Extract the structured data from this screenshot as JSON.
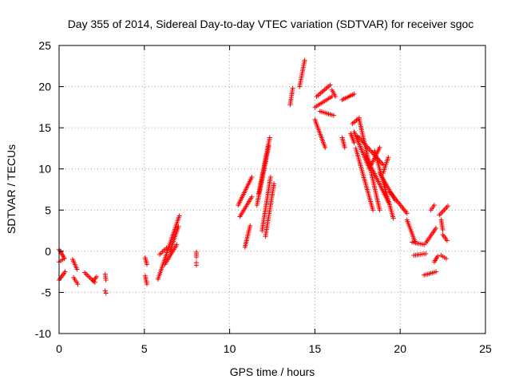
{
  "chart_data": {
    "type": "scatter",
    "title": "Day 355 of 2014, Sidereal Day-to-day VTEC variation (SDTVAR) for receiver sgoc",
    "xlabel": "GPS time / hours",
    "ylabel": "SDTVAR / TECUs",
    "xlim": [
      0,
      25
    ],
    "ylim": [
      -10,
      25
    ],
    "x_ticks": [
      0,
      5,
      10,
      15,
      20,
      25
    ],
    "y_ticks": [
      -10,
      -5,
      0,
      5,
      10,
      15,
      20,
      25
    ],
    "x_tick_labels": [
      "0",
      "5",
      "10",
      "15",
      "20",
      "25"
    ],
    "y_tick_labels": [
      "-10",
      "-5",
      "0",
      "5",
      "10",
      "15",
      "20",
      "25"
    ],
    "grid": true,
    "marker": "+",
    "color": "#ff0000",
    "series": [
      {
        "name": "SDTVAR",
        "segments": [
          {
            "x": [
              0.0,
              0.3
            ],
            "y": [
              0.2,
              -0.8
            ]
          },
          {
            "x": [
              0.0,
              0.35
            ],
            "y": [
              -3.5,
              -2.5
            ]
          },
          {
            "x": [
              0.0,
              0.3
            ],
            "y": [
              -1.3,
              -0.9
            ]
          },
          {
            "x": [
              0.8,
              1.05
            ],
            "y": [
              -1.0,
              -2.2
            ]
          },
          {
            "x": [
              0.85,
              1.1
            ],
            "y": [
              -3.2,
              -4.0
            ]
          },
          {
            "x": [
              1.5,
              2.1
            ],
            "y": [
              -2.6,
              -3.8
            ]
          },
          {
            "x": [
              2.0,
              2.2
            ],
            "y": [
              -3.6,
              -3.1
            ]
          },
          {
            "x": [
              2.7,
              2.75
            ],
            "y": [
              -2.8,
              -3.5
            ]
          },
          {
            "x": [
              2.7,
              2.75
            ],
            "y": [
              -4.8,
              -5.1
            ]
          },
          {
            "x": [
              5.05,
              5.15
            ],
            "y": [
              -0.8,
              -1.6
            ]
          },
          {
            "x": [
              5.05,
              5.15
            ],
            "y": [
              -3.0,
              -4.0
            ]
          },
          {
            "x": [
              5.8,
              7.05
            ],
            "y": [
              -3.4,
              4.3
            ]
          },
          {
            "x": [
              5.9,
              6.3
            ],
            "y": [
              -0.4,
              0.4
            ]
          },
          {
            "x": [
              6.2,
              6.9
            ],
            "y": [
              -1.6,
              0.8
            ]
          },
          {
            "x": [
              6.5,
              7.0
            ],
            "y": [
              0.0,
              3.0
            ]
          },
          {
            "x": [
              8.05,
              8.05
            ],
            "y": [
              -0.1,
              -0.7
            ]
          },
          {
            "x": [
              8.05,
              8.05
            ],
            "y": [
              -1.4,
              -1.7
            ]
          },
          {
            "x": [
              10.5,
              11.3
            ],
            "y": [
              5.6,
              9.0
            ]
          },
          {
            "x": [
              10.6,
              11.3
            ],
            "y": [
              4.2,
              6.6
            ]
          },
          {
            "x": [
              10.9,
              11.2
            ],
            "y": [
              0.5,
              3.1
            ]
          },
          {
            "x": [
              11.6,
              12.3
            ],
            "y": [
              5.6,
              12.8
            ]
          },
          {
            "x": [
              11.7,
              12.35
            ],
            "y": [
              7.0,
              13.8
            ]
          },
          {
            "x": [
              11.9,
              12.4
            ],
            "y": [
              2.5,
              9.0
            ]
          },
          {
            "x": [
              12.1,
              12.6
            ],
            "y": [
              1.8,
              8.2
            ]
          },
          {
            "x": [
              13.55,
              13.7
            ],
            "y": [
              17.8,
              19.8
            ]
          },
          {
            "x": [
              14.1,
              14.4
            ],
            "y": [
              20.0,
              23.2
            ]
          },
          {
            "x": [
              15.0,
              15.6
            ],
            "y": [
              16.0,
              12.6
            ]
          },
          {
            "x": [
              15.1,
              15.9
            ],
            "y": [
              18.8,
              20.2
            ]
          },
          {
            "x": [
              15.0,
              16.0
            ],
            "y": [
              17.5,
              18.8
            ]
          },
          {
            "x": [
              15.3,
              16.1
            ],
            "y": [
              17.0,
              16.5
            ]
          },
          {
            "x": [
              16.0,
              16.2
            ],
            "y": [
              19.6,
              18.8
            ]
          },
          {
            "x": [
              16.6,
              16.75
            ],
            "y": [
              13.8,
              12.6
            ]
          },
          {
            "x": [
              16.6,
              17.3
            ],
            "y": [
              18.4,
              19.1
            ]
          },
          {
            "x": [
              17.1,
              17.3
            ],
            "y": [
              14.3,
              13.2
            ]
          },
          {
            "x": [
              17.2,
              17.6
            ],
            "y": [
              15.5,
              16.2
            ]
          },
          {
            "x": [
              17.3,
              18.2
            ],
            "y": [
              14.5,
              10.0
            ]
          },
          {
            "x": [
              17.4,
              18.4
            ],
            "y": [
              12.5,
              5.0
            ]
          },
          {
            "x": [
              17.5,
              19.0
            ],
            "y": [
              14.0,
              10.5
            ]
          },
          {
            "x": [
              17.6,
              18.8
            ],
            "y": [
              16.0,
              5.0
            ]
          },
          {
            "x": [
              18.0,
              19.3
            ],
            "y": [
              11.5,
              6.0
            ]
          },
          {
            "x": [
              18.3,
              18.8
            ],
            "y": [
              10.5,
              12.6
            ]
          },
          {
            "x": [
              18.5,
              19.6
            ],
            "y": [
              12.2,
              4.0
            ]
          },
          {
            "x": [
              18.8,
              19.7
            ],
            "y": [
              9.5,
              6.2
            ]
          },
          {
            "x": [
              19.0,
              19.3
            ],
            "y": [
              9.5,
              11.4
            ]
          },
          {
            "x": [
              19.4,
              20.4
            ],
            "y": [
              7.2,
              4.6
            ]
          },
          {
            "x": [
              20.4,
              20.9
            ],
            "y": [
              3.8,
              1.0
            ]
          },
          {
            "x": [
              20.7,
              21.4
            ],
            "y": [
              1.1,
              0.8
            ]
          },
          {
            "x": [
              20.8,
              21.5
            ],
            "y": [
              -0.5,
              -0.3
            ]
          },
          {
            "x": [
              21.4,
              22.1
            ],
            "y": [
              -2.9,
              -2.5
            ]
          },
          {
            "x": [
              21.5,
              22.1
            ],
            "y": [
              1.0,
              2.8
            ]
          },
          {
            "x": [
              21.8,
              22.0
            ],
            "y": [
              5.0,
              5.6
            ]
          },
          {
            "x": [
              22.0,
              22.2
            ],
            "y": [
              -1.3,
              -0.6
            ]
          },
          {
            "x": [
              22.3,
              22.8
            ],
            "y": [
              4.4,
              5.5
            ]
          },
          {
            "x": [
              22.4,
              22.5
            ],
            "y": [
              3.8,
              2.6
            ]
          },
          {
            "x": [
              22.5,
              22.75
            ],
            "y": [
              2.0,
              1.3
            ]
          },
          {
            "x": [
              22.4,
              22.7
            ],
            "y": [
              -0.5,
              -0.9
            ]
          }
        ]
      }
    ]
  }
}
